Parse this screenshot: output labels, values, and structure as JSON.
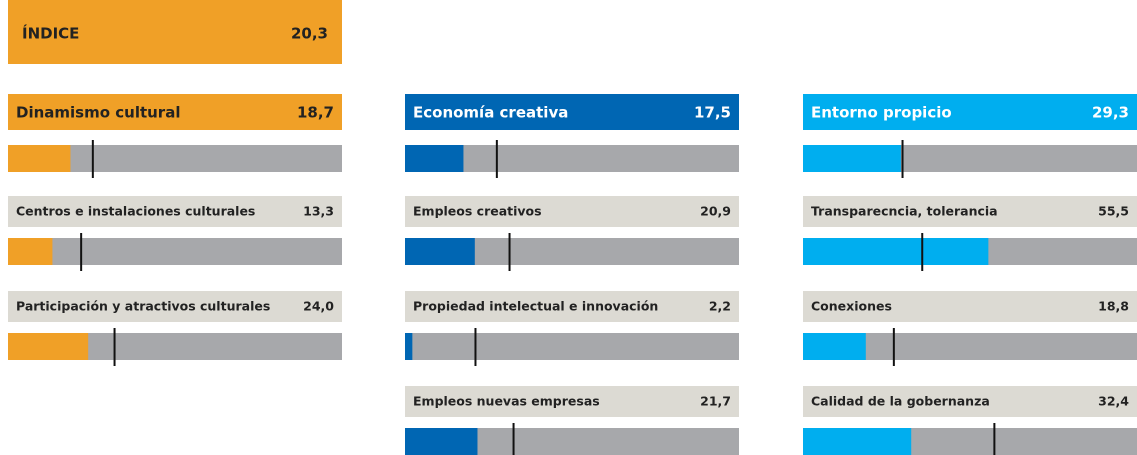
{
  "chart_data": {
    "type": "bar",
    "xlim": [
      0,
      100
    ],
    "index": {
      "name": "ÍNDICE",
      "value": 20.3,
      "value_label": "20,3",
      "color": "#f0a027"
    },
    "groups": [
      {
        "name": "Dinamismo cultural",
        "value": 18.7,
        "value_label": "18,7",
        "reference": 25.4,
        "color": "#f0a027",
        "items": [
          {
            "name": "Centros e instalaciones culturales",
            "value": 13.3,
            "value_label": "13,3",
            "reference": 21.9
          },
          {
            "name": "Participación y atractivos culturales",
            "value": 24.0,
            "value_label": "24,0",
            "reference": 31.9
          }
        ]
      },
      {
        "name": "Economía creativa",
        "value": 17.5,
        "value_label": "17,5",
        "reference": 27.5,
        "color": "#0066b3",
        "items": [
          {
            "name": "Empleos creativos",
            "value": 20.9,
            "value_label": "20,9",
            "reference": 31.3
          },
          {
            "name": "Propiedad intelectual e innovación",
            "value": 2.2,
            "value_label": "2,2",
            "reference": 21.1
          },
          {
            "name": "Empleos nuevas empresas",
            "value": 21.7,
            "value_label": "21,7",
            "reference": 32.5
          }
        ]
      },
      {
        "name": "Entorno propicio",
        "value": 29.3,
        "value_label": "29,3",
        "reference": 29.8,
        "color": "#00aeef",
        "items": [
          {
            "name": "Transparecncia, tolerancia",
            "value": 55.5,
            "value_label": "55,5",
            "reference": 35.7
          },
          {
            "name": "Conexiones",
            "value": 18.8,
            "value_label": "18,8",
            "reference": 27.2
          },
          {
            "name": "Calidad de la gobernanza",
            "value": 32.4,
            "value_label": "32,4",
            "reference": 57.3
          }
        ]
      }
    ]
  }
}
